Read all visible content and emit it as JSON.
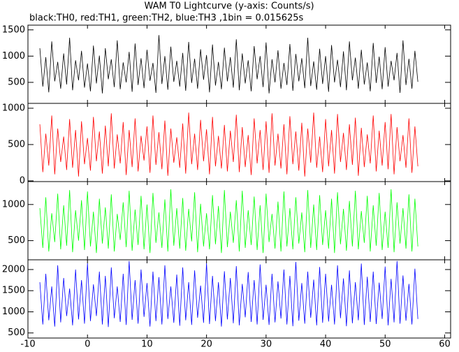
{
  "chart_data": {
    "type": "line",
    "title": "WAM T0 Lightcurve (y-axis: Counts/s)",
    "subtitle": "black:TH0, red:TH1, green:TH2, blue:TH3 ,1bin = 0.015625s",
    "xlim": [
      -10,
      61
    ],
    "xticks": [
      -10,
      0,
      10,
      20,
      30,
      40,
      50,
      60
    ],
    "x": [
      -8,
      -7.5,
      -7,
      -6.5,
      -6,
      -5.5,
      -5,
      -4.5,
      -4,
      -3.5,
      -3,
      -2.5,
      -2,
      -1.5,
      -1,
      -0.5,
      0,
      0.5,
      1,
      1.5,
      2,
      2.5,
      3,
      3.5,
      4,
      4.5,
      5,
      5.5,
      6,
      6.5,
      7,
      7.5,
      8,
      8.5,
      9,
      9.5,
      10,
      10.5,
      11,
      11.5,
      12,
      12.5,
      13,
      13.5,
      14,
      14.5,
      15,
      15.5,
      16,
      16.5,
      17,
      17.5,
      18,
      18.5,
      19,
      19.5,
      20,
      20.5,
      21,
      21.5,
      22,
      22.5,
      23,
      23.5,
      24,
      24.5,
      25,
      25.5,
      26,
      26.5,
      27,
      27.5,
      28,
      28.5,
      29,
      29.5,
      30,
      30.5,
      31,
      31.5,
      32,
      32.5,
      33,
      33.5,
      34,
      34.5,
      35,
      35.5,
      36,
      36.5,
      37,
      37.5,
      38,
      38.5,
      39,
      39.5,
      40,
      40.5,
      41,
      41.5,
      42,
      42.5,
      43,
      43.5,
      44,
      44.5,
      45,
      45.5,
      46,
      46.5,
      47,
      47.5,
      48,
      48.5,
      49,
      49.5,
      50,
      50.5,
      51,
      51.5,
      52,
      52.5,
      53,
      53.5,
      54,
      54.5,
      55,
      55.5
    ],
    "series": [
      {
        "name": "TH0",
        "color": "#000000",
        "ylim": [
          100,
          1590
        ],
        "yticks": [
          500,
          1000,
          1500
        ],
        "values": [
          1150,
          420,
          980,
          310,
          1280,
          520,
          890,
          380,
          1050,
          460,
          1350,
          350,
          920,
          540,
          1100,
          400,
          860,
          330,
          1200,
          480,
          1010,
          290,
          1150,
          560,
          940,
          410,
          1300,
          370,
          880,
          500,
          1080,
          320,
          1240,
          450,
          960,
          390,
          1120,
          530,
          870,
          300,
          1400,
          470,
          1000,
          360,
          1180,
          510,
          910,
          420,
          1060,
          340,
          1270,
          490,
          950,
          380,
          1130,
          550,
          1020,
          310,
          1220,
          440,
          890,
          370,
          1160,
          520,
          980,
          400,
          1320,
          350,
          1050,
          480,
          920,
          330,
          1190,
          560,
          1000,
          410,
          1260,
          290,
          940,
          500,
          1110,
          380,
          870,
          450,
          1230,
          340,
          1040,
          520,
          960,
          390,
          1350,
          430,
          900,
          360,
          1140,
          470,
          1000,
          320,
          1210,
          500,
          930,
          410,
          1090,
          350,
          1280,
          540,
          970,
          380,
          1120,
          460,
          880,
          330,
          1250,
          490,
          990,
          370,
          1170,
          420,
          910,
          540,
          1060,
          300,
          1300,
          450,
          950,
          380,
          1100,
          510
        ]
      },
      {
        "name": "TH1",
        "color": "#ff0000",
        "ylim": [
          -10,
          1067
        ],
        "yticks": [
          0,
          500,
          1000
        ],
        "values": [
          780,
          120,
          650,
          210,
          900,
          90,
          720,
          260,
          610,
          150,
          850,
          180,
          700,
          60,
          820,
          230,
          590,
          140,
          880,
          270,
          680,
          100,
          760,
          200,
          930,
          170,
          640,
          240,
          810,
          80,
          700,
          190,
          860,
          130,
          620,
          280,
          750,
          110,
          900,
          220,
          670,
          160,
          830,
          70,
          720,
          250,
          600,
          180,
          790,
          100,
          940,
          230,
          650,
          150,
          840,
          270,
          710,
          90,
          880,
          200,
          620,
          170,
          770,
          130,
          690,
          260,
          910,
          120,
          740,
          190,
          630,
          80,
          860,
          240,
          700,
          150,
          820,
          110,
          930,
          210,
          650,
          170,
          780,
          90,
          890,
          230,
          680,
          140,
          800,
          60,
          720,
          250,
          940,
          180,
          610,
          120,
          850,
          200,
          700,
          100,
          920,
          260,
          660,
          150,
          780,
          220,
          870,
          70,
          730,
          190,
          640,
          240,
          900,
          130,
          690,
          210,
          810,
          160,
          920,
          90,
          740,
          270,
          630,
          180,
          860,
          110,
          750,
          200
        ]
      },
      {
        "name": "TH2",
        "color": "#00ff00",
        "ylim": [
          235,
          1317
        ],
        "yticks": [
          500,
          1000
        ],
        "values": [
          950,
          400,
          1100,
          350,
          880,
          480,
          1150,
          380,
          990,
          430,
          1200,
          340,
          920,
          500,
          1060,
          370,
          1180,
          420,
          900,
          330,
          1080,
          460,
          960,
          390,
          1140,
          350,
          870,
          510,
          1030,
          410,
          1190,
          360,
          930,
          440,
          1120,
          380,
          1000,
          330,
          1160,
          470,
          890,
          400,
          1070,
          350,
          1210,
          430,
          950,
          390,
          1090,
          360,
          940,
          490,
          1170,
          340,
          1010,
          420,
          880,
          380,
          1130,
          450,
          980,
          330,
          1200,
          410,
          900,
          470,
          1060,
          350,
          1190,
          400,
          920,
          440,
          1110,
          370,
          990,
          330,
          1150,
          480,
          870,
          390,
          1040,
          350,
          1180,
          420,
          950,
          380,
          1100,
          460,
          890,
          340,
          1200,
          400,
          1000,
          370,
          1130,
          440,
          920,
          390,
          1080,
          330,
          1170,
          450,
          940,
          360,
          1050,
          420,
          1190,
          380,
          910,
          470,
          1120,
          350,
          990,
          430,
          1160,
          370,
          900,
          400,
          1210,
          340,
          1030,
          460,
          950,
          390,
          1140,
          350,
          1080,
          420
        ]
      },
      {
        "name": "TH3",
        "color": "#0000ff",
        "ylim": [
          380,
          2230
        ],
        "yticks": [
          500,
          1000,
          1500,
          2000
        ],
        "values": [
          1700,
          700,
          1900,
          800,
          1600,
          650,
          2100,
          750,
          1800,
          900,
          1550,
          680,
          2000,
          820,
          1750,
          720,
          2150,
          780,
          1650,
          900,
          1950,
          700,
          1850,
          640,
          2050,
          850,
          1600,
          760,
          1900,
          690,
          2200,
          810,
          1750,
          720,
          2000,
          880,
          1680,
          650,
          1950,
          780,
          1820,
          700,
          2100,
          830,
          1600,
          740,
          1880,
          670,
          2050,
          800,
          1700,
          690,
          1980,
          860,
          1620,
          740,
          2150,
          710,
          1850,
          780,
          1700,
          650,
          1960,
          820,
          1800,
          730,
          2080,
          680,
          1660,
          870,
          1940,
          760,
          1750,
          700,
          2120,
          810,
          1640,
          690,
          1900,
          750,
          1720,
          840,
          2000,
          700,
          1850,
          660,
          2180,
          790,
          1680,
          720,
          1950,
          860,
          1760,
          680,
          2060,
          740,
          1900,
          770,
          1640,
          700,
          2100,
          850,
          1790,
          660,
          1980,
          730,
          1700,
          800,
          2140,
          690,
          1830,
          760,
          1950,
          710,
          1690,
          830,
          2070,
          680,
          1780,
          750,
          2200,
          720,
          1860,
          790,
          1660,
          700,
          2020,
          830
        ]
      }
    ]
  }
}
